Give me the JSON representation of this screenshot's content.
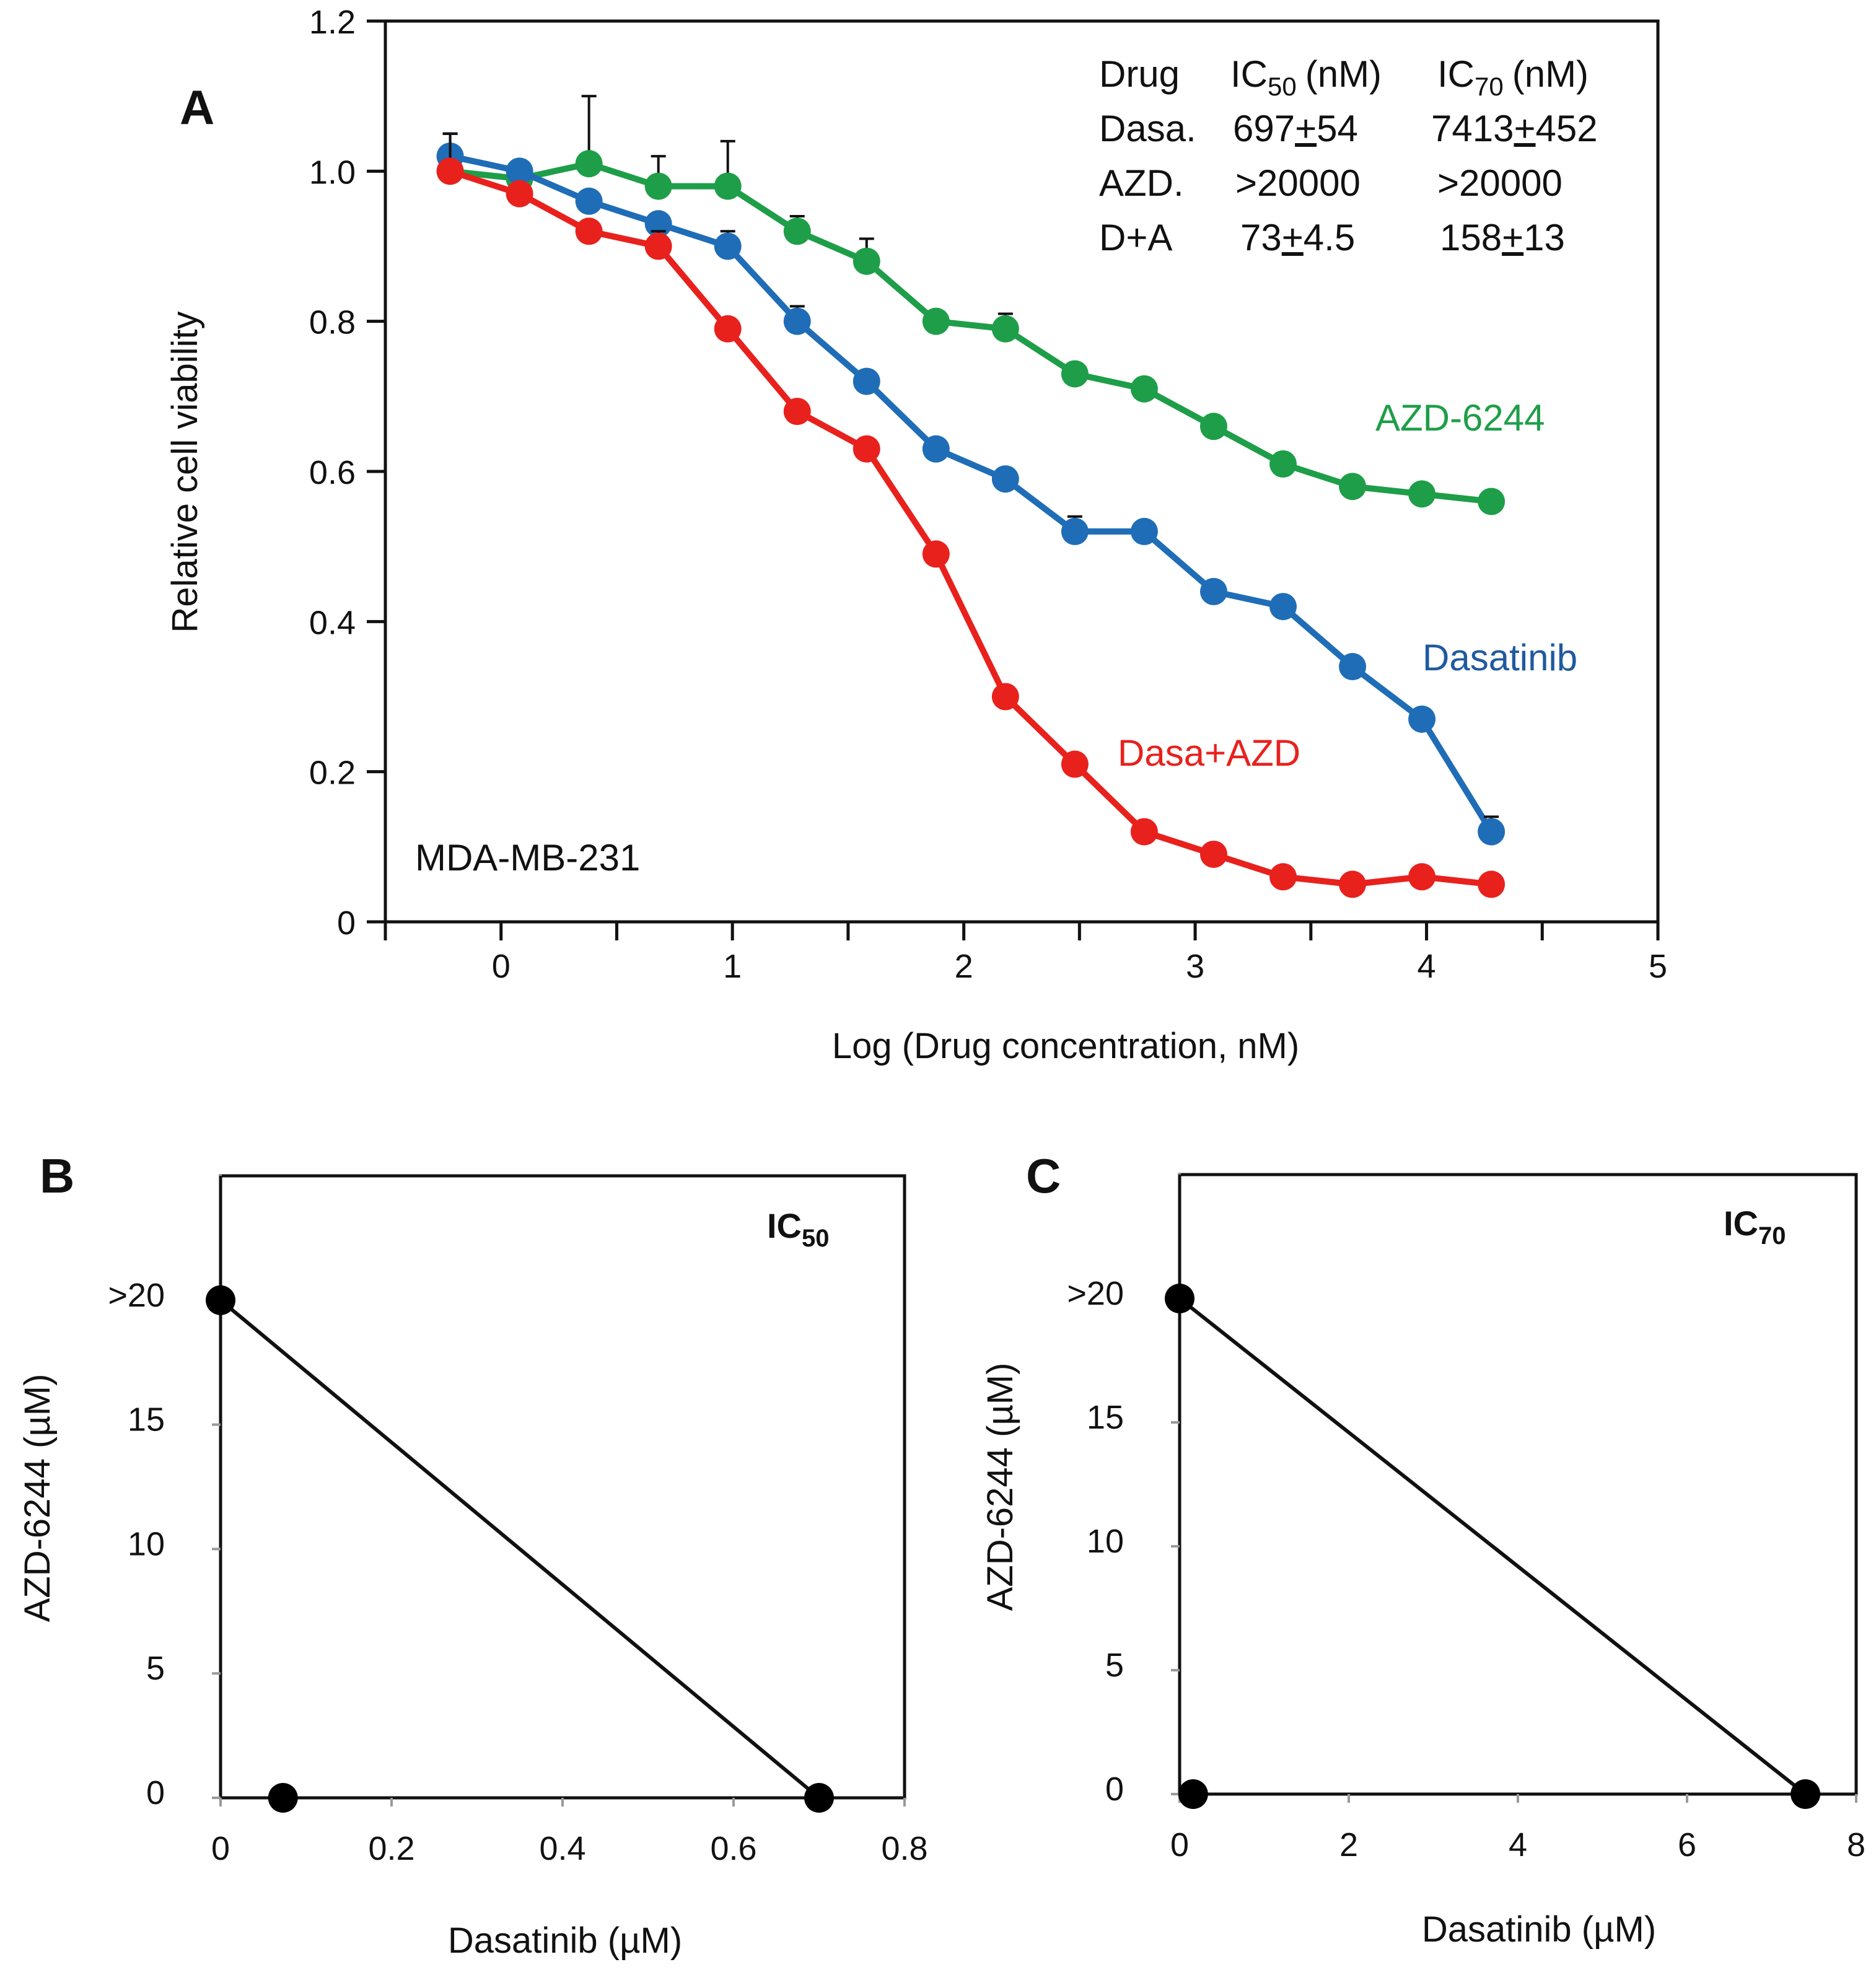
{
  "figure": {
    "panels": [
      "A",
      "B",
      "C"
    ]
  },
  "chart_data": [
    {
      "type": "line",
      "panel": "A",
      "xlabel": "Log (Drug concentration, nM)",
      "ylabel": "Relative cell viability",
      "xlim": [
        -0.5,
        5
      ],
      "ylim": [
        0,
        1.2
      ],
      "xticks": [
        "0",
        "1",
        "2",
        "3",
        "4",
        "5"
      ],
      "yticks": [
        "0",
        "0.2",
        "0.4",
        "0.6",
        "0.8",
        "1.0",
        "1.2"
      ],
      "annotation": "MDA-MB-231",
      "x": [
        -0.22,
        0.08,
        0.38,
        0.68,
        0.98,
        1.28,
        1.58,
        1.88,
        2.18,
        2.48,
        2.78,
        3.08,
        3.38,
        3.68,
        3.98,
        4.28
      ],
      "series": [
        {
          "name": "AZD-6244",
          "color": "#1e9e48",
          "values": [
            1.0,
            0.99,
            1.01,
            0.98,
            0.98,
            0.92,
            0.88,
            0.8,
            0.79,
            0.73,
            0.71,
            0.66,
            0.61,
            0.58,
            0.57,
            0.56
          ],
          "errors": [
            0.05,
            0.02,
            0.09,
            0.04,
            0.06,
            0.02,
            0.03,
            0.01,
            0.02,
            0.01,
            0.01,
            0.01,
            0.01,
            0.01,
            0.01,
            0.01
          ]
        },
        {
          "name": "Dasatinib",
          "color": "#1f6db7",
          "values": [
            1.02,
            1.0,
            0.96,
            0.93,
            0.9,
            0.8,
            0.72,
            0.63,
            0.59,
            0.52,
            0.52,
            0.44,
            0.42,
            0.34,
            0.27,
            0.12
          ],
          "errors": [
            0.03,
            0.01,
            0.01,
            0.01,
            0.02,
            0.02,
            0.01,
            0.01,
            0.01,
            0.02,
            0.01,
            0.01,
            0.01,
            0.01,
            0.01,
            0.02
          ]
        },
        {
          "name": "Dasa+AZD",
          "color": "#e8211d",
          "values": [
            1.0,
            0.97,
            0.92,
            0.9,
            0.79,
            0.68,
            0.63,
            0.49,
            0.3,
            0.21,
            0.12,
            0.09,
            0.06,
            0.05,
            0.06,
            0.05
          ],
          "errors": [
            0.05,
            0.01,
            0.01,
            0.02,
            0.01,
            0.01,
            0.01,
            0.01,
            0.01,
            0.01,
            0.01,
            0.01,
            0.01,
            0.01,
            0.01,
            0.01
          ]
        }
      ],
      "table": {
        "headers": [
          "Drug",
          "IC",
          "50",
          "(nM)",
          "IC",
          "70",
          "(nM)"
        ],
        "rows": [
          [
            "Dasa.",
            "697",
            "+",
            "54",
            "7413",
            "+",
            "452"
          ],
          [
            "AZD.",
            ">20000",
            "",
            "",
            ">20000",
            "",
            ""
          ],
          [
            "D+A",
            "73",
            "+",
            "4.5",
            "158",
            "+",
            "13"
          ]
        ]
      }
    },
    {
      "type": "scatter",
      "panel": "B",
      "title_main": "IC",
      "title_sub": "50",
      "xlabel": "Dasatinib (µM)",
      "ylabel": "AZD-6244 (µM)",
      "xlim": [
        0,
        0.8
      ],
      "ylim": [
        0,
        25
      ],
      "xticks": [
        "0",
        "0.2",
        "0.4",
        "0.6",
        "0.8"
      ],
      "yticks": [
        "0",
        "5",
        "10",
        "15",
        ">20"
      ],
      "points": [
        [
          0,
          20
        ],
        [
          0.7,
          0
        ],
        [
          0.073,
          0
        ]
      ],
      "isobole": [
        [
          0,
          20
        ],
        [
          0.7,
          0
        ]
      ]
    },
    {
      "type": "scatter",
      "panel": "C",
      "title_main": "IC",
      "title_sub": "70",
      "xlabel": "Dasatinib (µM)",
      "ylabel": "AZD-6244 (µM)",
      "xlim": [
        0,
        8
      ],
      "ylim": [
        0,
        25
      ],
      "xticks": [
        "0",
        "2",
        "4",
        "6",
        "8"
      ],
      "yticks": [
        "0",
        "5",
        "10",
        "15",
        ">20"
      ],
      "points": [
        [
          0,
          20
        ],
        [
          7.4,
          0
        ],
        [
          0.16,
          0
        ]
      ],
      "isobole": [
        [
          0,
          20
        ],
        [
          7.4,
          0
        ]
      ]
    }
  ]
}
